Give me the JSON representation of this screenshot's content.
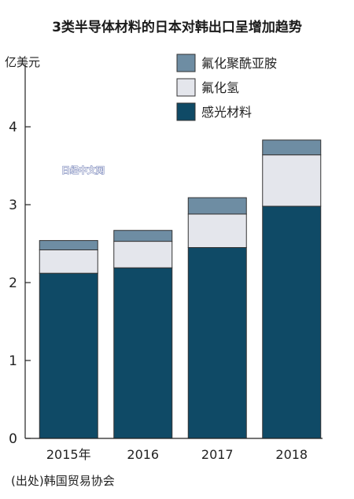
{
  "chart_data": {
    "type": "bar",
    "stacked": true,
    "title": "3类半导体材料的日本对韩出口呈增加趋势",
    "unit_label": "亿美元",
    "categories": [
      "2015年",
      "2016",
      "2017",
      "2018"
    ],
    "series": [
      {
        "name": "感光材料",
        "color": "#0f4a66",
        "values": [
          2.12,
          2.19,
          2.45,
          2.98
        ]
      },
      {
        "name": "氟化氢",
        "color": "#e4e6ec",
        "values": [
          0.3,
          0.34,
          0.43,
          0.66
        ]
      },
      {
        "name": "氟化聚酰亚胺",
        "color": "#6e8da3",
        "values": [
          0.12,
          0.14,
          0.21,
          0.19
        ]
      }
    ],
    "legend_order": [
      "氟化聚酰亚胺",
      "氟化氢",
      "感光材料"
    ],
    "yticks": [
      0,
      1,
      2,
      3,
      4
    ],
    "ylim": [
      0,
      4.9
    ],
    "grid": false,
    "legend_position": "top-right"
  },
  "source_note": "(出处)韩国贸易协会",
  "watermark": "日经中文网"
}
